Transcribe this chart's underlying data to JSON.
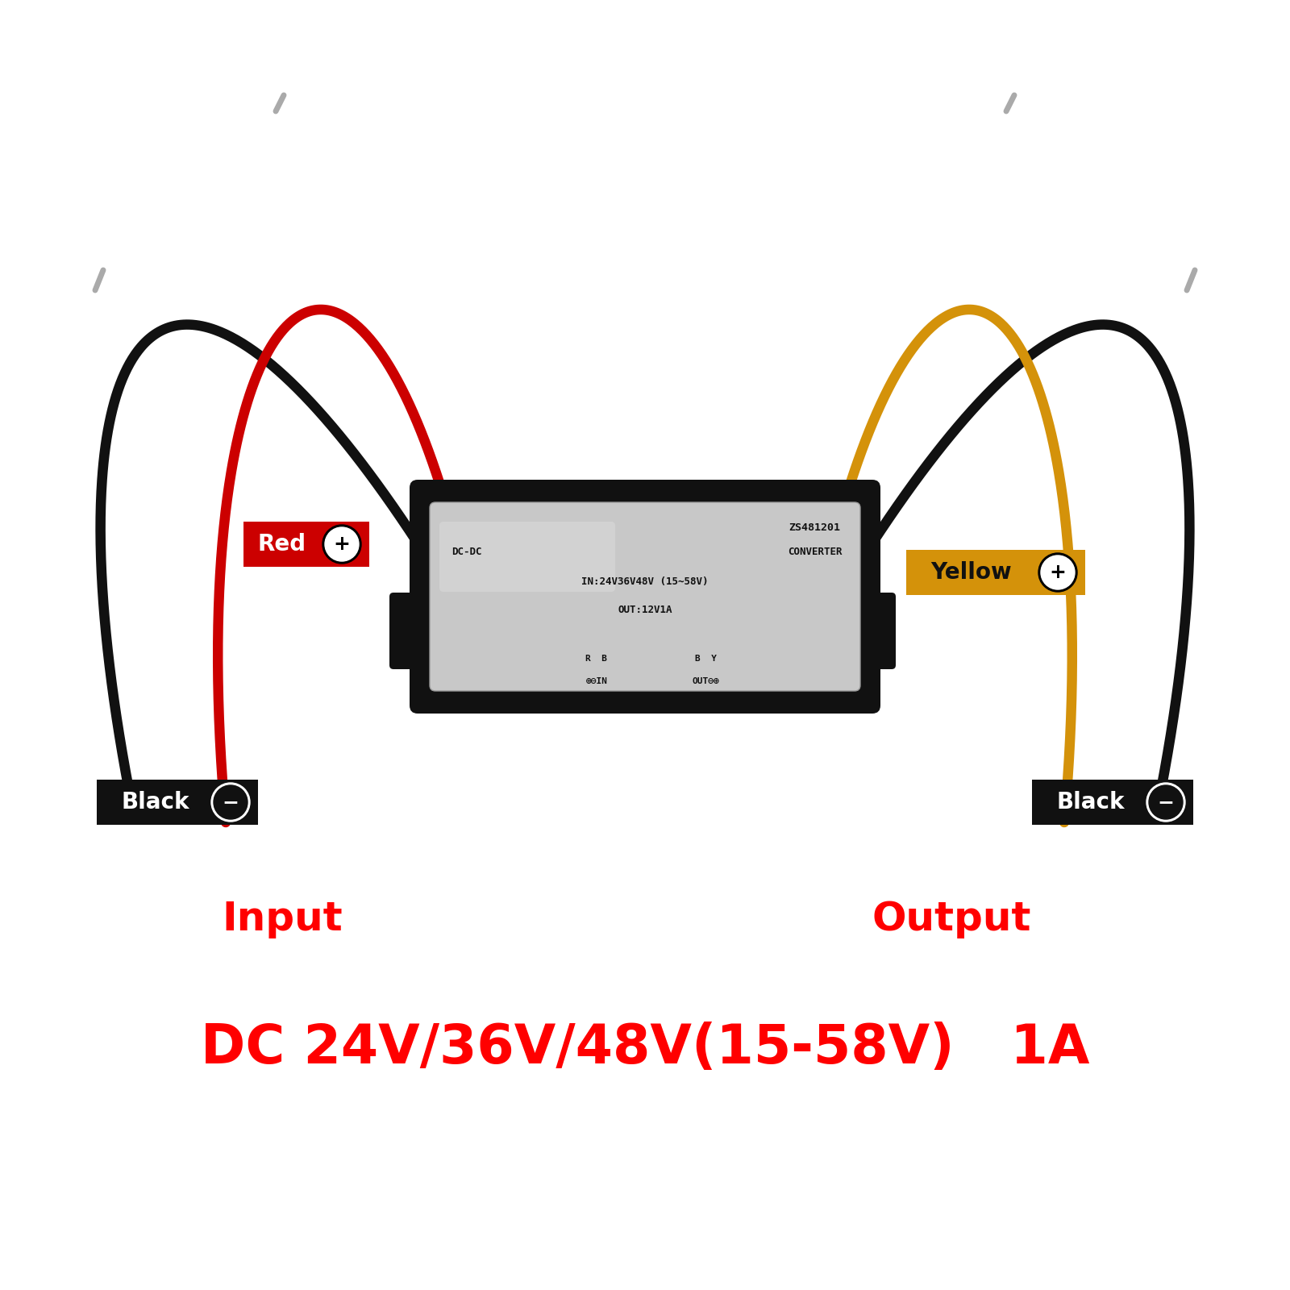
{
  "bg_color": "#ffffff",
  "title_text": "DC 24V/36V/48V(15-58V)   1A",
  "title_color": "#ff0000",
  "title_fontsize": 48,
  "subtitle_input": "Input",
  "subtitle_output": "Output",
  "subtitle_color": "#ff0000",
  "subtitle_fontsize": 36,
  "module_bg": "#c8c8c8",
  "module_border": "#111111",
  "wire_color_red": "#cc0000",
  "wire_color_black": "#111111",
  "wire_color_yellow": "#d4920a",
  "wire_tip_color": "#aaaaaa",
  "label_red_bg": "#cc0000",
  "label_yellow_bg": "#d4920a",
  "label_black_bg": "#111111"
}
